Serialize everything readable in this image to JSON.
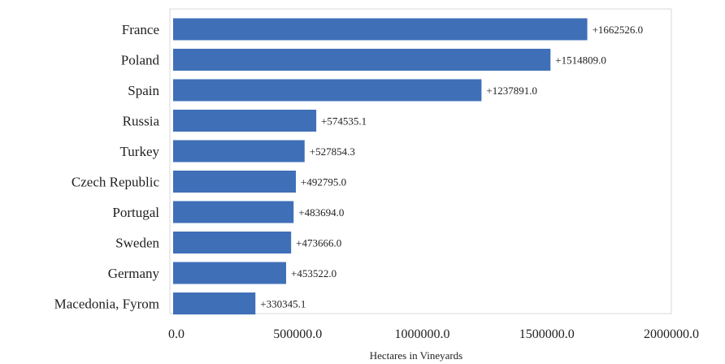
{
  "chart_data": {
    "type": "bar",
    "orientation": "horizontal",
    "title": "",
    "xlabel": "Hectares in Vineyards",
    "ylabel": "",
    "categories": [
      "France",
      "Poland",
      "Spain",
      "Russia",
      "Turkey",
      "Czech Republic",
      "Portugal",
      "Sweden",
      "Germany",
      "Macedonia, Fyrom"
    ],
    "values": [
      1662526.0,
      1514809.0,
      1237891.0,
      574535.1,
      527854.3,
      492795.0,
      483694.0,
      473666.0,
      453522.0,
      330345.1
    ],
    "value_labels": [
      "+1662526.0",
      "+1514809.0",
      "+1237891.0",
      "+574535.1",
      "+527854.3",
      "+492795.0",
      "+483694.0",
      "+473666.0",
      "+453522.0",
      "+330345.1"
    ],
    "xlim": [
      0,
      2000000
    ],
    "xticks": [
      0,
      500000,
      1000000,
      1500000,
      2000000
    ],
    "xtick_labels": [
      "0.0",
      "500000.0",
      "1000000.0",
      "1500000.0",
      "2000000.0"
    ],
    "bar_color": "#3f6fb7",
    "grid": false,
    "legend": "none"
  }
}
